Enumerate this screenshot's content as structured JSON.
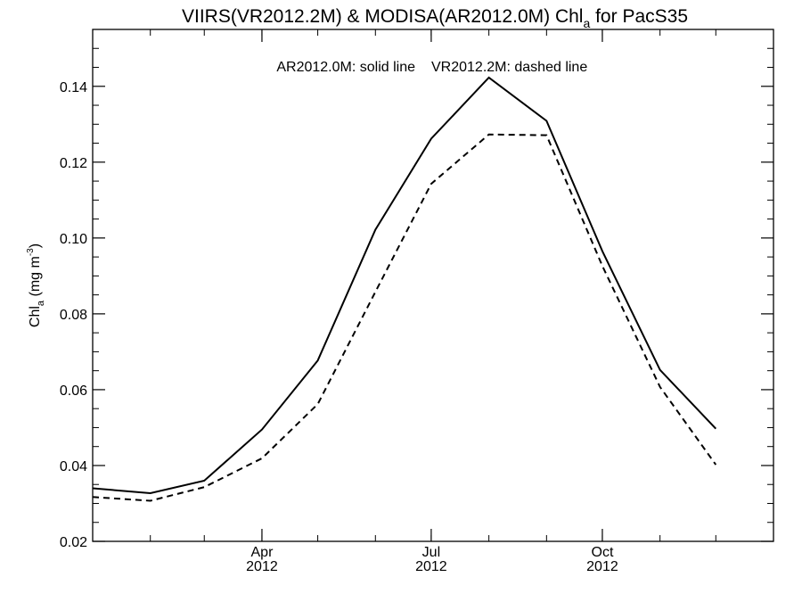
{
  "chart_data": {
    "type": "line",
    "title": {
      "prefix": "VIIRS(VR2012.2M) & MODISA(AR2012.0M)  Chl",
      "sub": "a",
      "suffix": " for PacS35"
    },
    "annotation": {
      "solid": "AR2012.0M: solid line",
      "dashed": "VR2012.2M: dashed line"
    },
    "ylabel": {
      "prefix": "Chl",
      "sub": "a",
      "mid": " (mg m",
      "sup": "-3",
      "suffix": ")"
    },
    "ylim": [
      0.02,
      0.155
    ],
    "yticks": [
      "0.02",
      "0.04",
      "0.06",
      "0.08",
      "0.10",
      "0.12",
      "0.14"
    ],
    "xlim": [
      "2012-01-01",
      "2013-01-01"
    ],
    "xticks": [
      {
        "date": "2012-04-01",
        "month": "Apr",
        "year": "2012"
      },
      {
        "date": "2012-07-01",
        "month": "Jul",
        "year": "2012"
      },
      {
        "date": "2012-10-01",
        "month": "Oct",
        "year": "2012"
      }
    ],
    "x": [
      "2012-01-01",
      "2012-02-01",
      "2012-03-01",
      "2012-04-01",
      "2012-05-01",
      "2012-06-01",
      "2012-07-01",
      "2012-08-01",
      "2012-09-01",
      "2012-10-01",
      "2012-11-01",
      "2012-12-01",
      "2013-01-01"
    ],
    "series": [
      {
        "name": "AR2012.0M",
        "style": "solid",
        "values": [
          0.034,
          0.0327,
          0.036,
          0.0495,
          0.0677,
          0.1022,
          0.1262,
          0.1423,
          0.1309,
          0.0965,
          0.0652,
          0.0497,
          null
        ]
      },
      {
        "name": "VR2012.2M",
        "style": "dashed",
        "values": [
          0.0317,
          0.0307,
          0.0343,
          0.0419,
          0.0562,
          0.0858,
          0.1143,
          0.1273,
          0.1271,
          0.0926,
          0.0607,
          0.0402,
          null
        ]
      }
    ],
    "grid": false,
    "legend": "none"
  }
}
